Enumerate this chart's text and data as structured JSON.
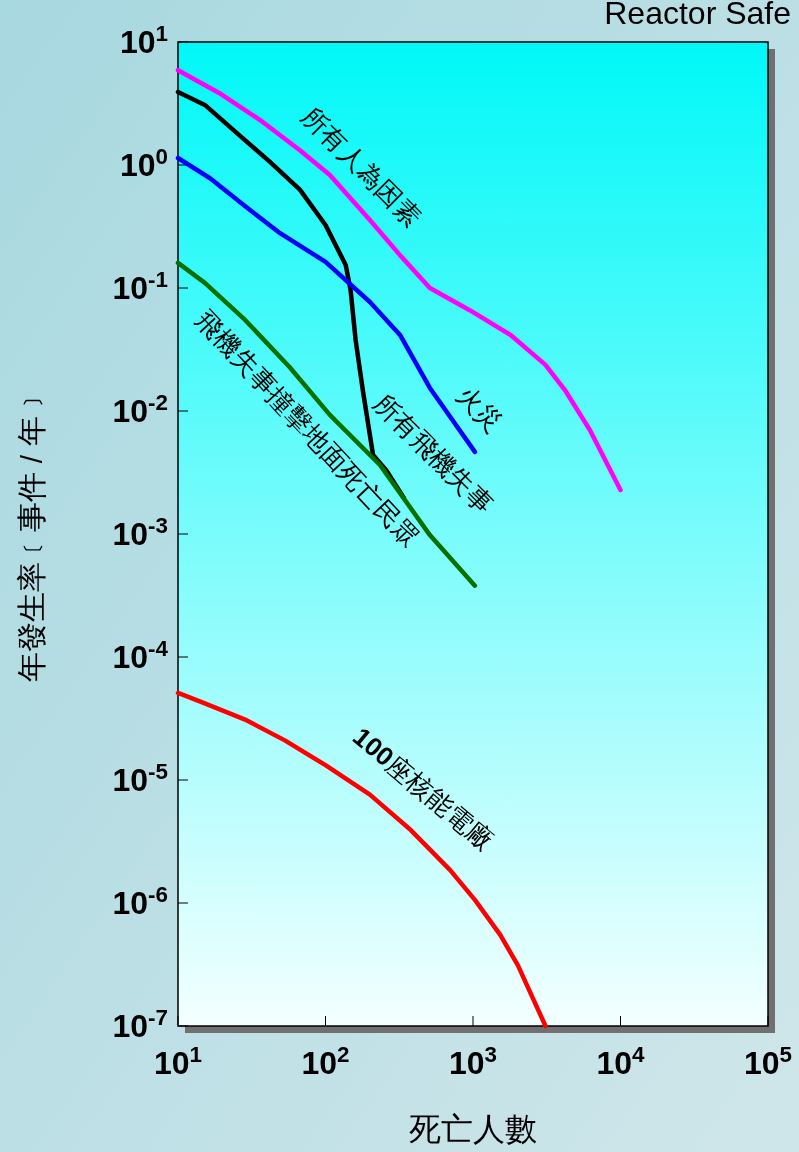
{
  "chart_data": {
    "type": "line",
    "title": "Reactor Safe",
    "xlabel": "死亡人數",
    "ylabel": "年發生率﹝事件 / 年﹞",
    "log": "xy",
    "xlim": [
      10,
      100000
    ],
    "ylim": [
      1e-07,
      10
    ],
    "xticks": [
      {
        "value": 10,
        "label": "10$^{1}$"
      },
      {
        "value": 100,
        "label": "10$^{2}$"
      },
      {
        "value": 1000,
        "label": "10$^{3}$"
      },
      {
        "value": 10000,
        "label": "10$^{4}$"
      },
      {
        "value": 100000,
        "label": "10$^{5}$"
      }
    ],
    "yticks": [
      {
        "value": 1e-07,
        "label": "10$^{-7}$"
      },
      {
        "value": 1e-06,
        "label": "10$^{-6}$"
      },
      {
        "value": 1e-05,
        "label": "10$^{-5}$"
      },
      {
        "value": 0.0001,
        "label": "10$^{-4}$"
      },
      {
        "value": 0.001,
        "label": "10$^{-3}$"
      },
      {
        "value": 0.01,
        "label": "10$^{-2}$"
      },
      {
        "value": 0.1,
        "label": "10$^{-1}$"
      },
      {
        "value": 1,
        "label": "10$^{0}$"
      },
      {
        "value": 10,
        "label": "10$^{1}$"
      }
    ],
    "marker": "none",
    "line_style": "solid",
    "series": [
      {
        "name": "所有人為因素",
        "color": "#ff00ff",
        "x": [
          10,
          19,
          36,
          67,
          107,
          200,
          320,
          510,
          950,
          1800,
          3100,
          4200,
          6200,
          10000
        ],
        "values": [
          5.9,
          3.85,
          2.32,
          1.32,
          0.83,
          0.357,
          0.185,
          0.1,
          0.066,
          0.0415,
          0.0237,
          0.0148,
          0.007,
          0.00228
        ]
      },
      {
        "name": "所有飛機失事",
        "color": "#000000",
        "x": [
          10,
          15.2,
          26,
          42,
          67,
          100,
          137,
          148,
          160,
          179,
          210,
          258,
          340
        ],
        "values": [
          3.92,
          3.08,
          1.75,
          1.06,
          0.63,
          0.325,
          0.154,
          0.096,
          0.0378,
          0.0148,
          0.0044,
          0.0033,
          0.00196
        ]
      },
      {
        "name": "火災",
        "color": "#0000ff",
        "x": [
          10,
          16.5,
          28,
          48,
          100,
          200,
          320,
          510,
          1030
        ],
        "values": [
          1.14,
          0.78,
          0.47,
          0.285,
          0.163,
          0.077,
          0.0415,
          0.0154,
          0.00465
        ]
      },
      {
        "name": "飛機失事撞擊地面死亡民眾",
        "color": "#007000",
        "x": [
          10,
          15.2,
          28.5,
          57,
          107,
          234,
          510,
          1030
        ],
        "values": [
          0.16,
          0.11,
          0.055,
          0.0228,
          0.0093,
          0.00364,
          0.00098,
          0.00038
        ]
      },
      {
        "name": "**100**座核能電廠",
        "color": "#ff0000",
        "x": [
          10,
          15.2,
          28.5,
          53,
          100,
          200,
          380,
          700,
          1030,
          1530,
          2020,
          3100
        ],
        "values": [
          5.1e-05,
          4.2e-05,
          3.1e-05,
          2.1e-05,
          1.32e-05,
          7.6e-06,
          3.9e-06,
          1.85e-06,
          1.06e-06,
          5.5e-07,
          3.1e-07,
          1e-07
        ]
      }
    ]
  }
}
